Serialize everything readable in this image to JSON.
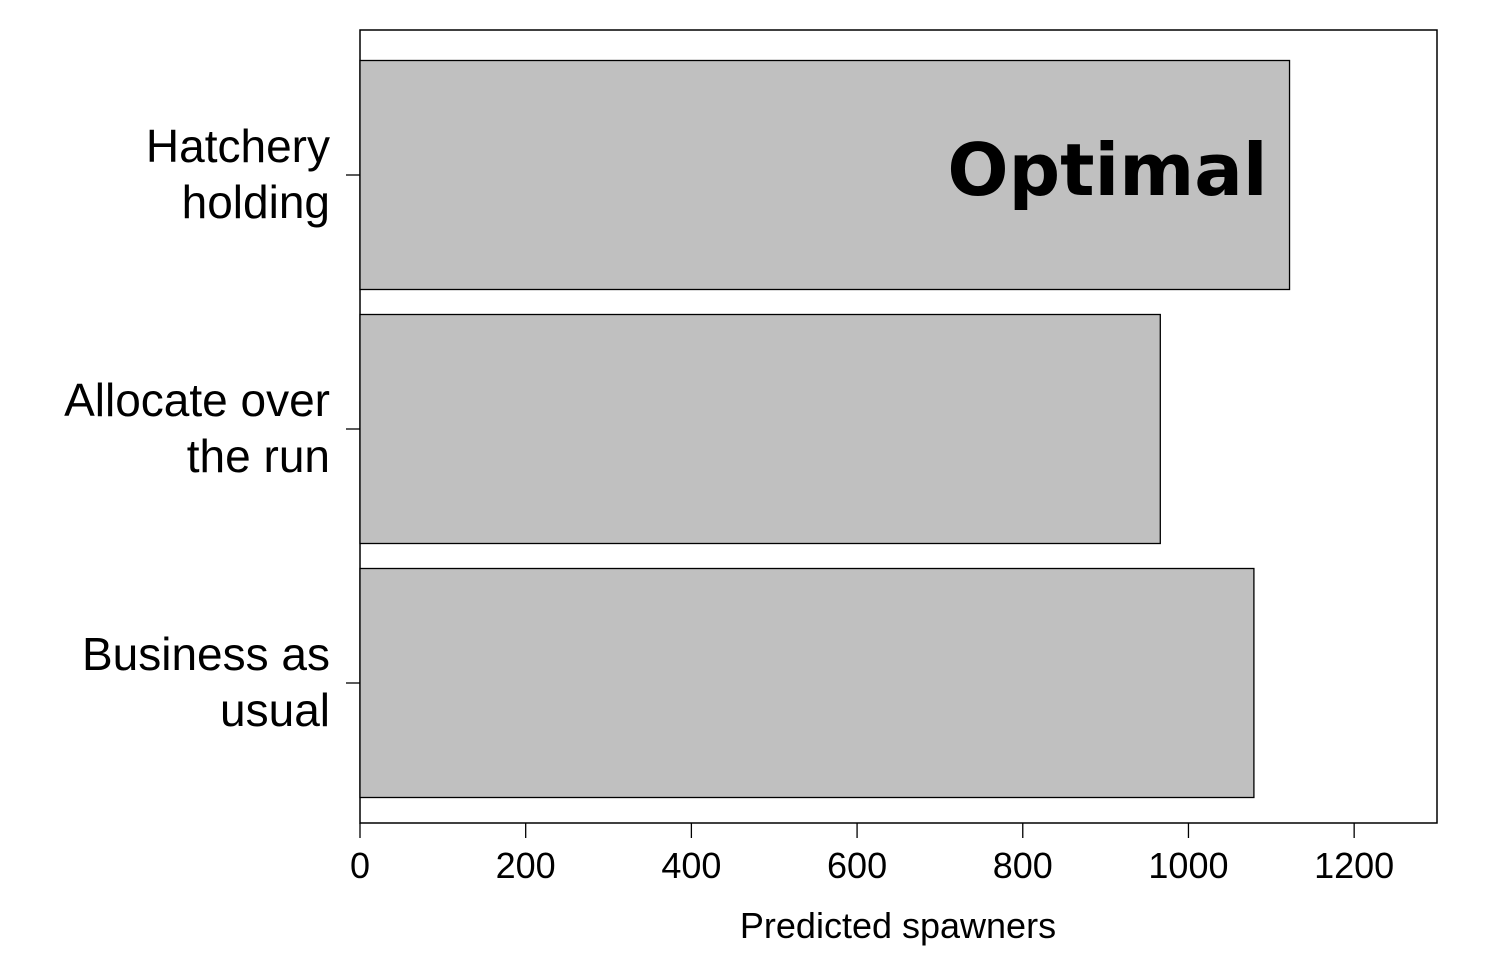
{
  "chart_data": {
    "type": "bar",
    "orientation": "horizontal",
    "categories": [
      "Hatchery holding",
      "Allocate over the run",
      "Business as usual"
    ],
    "category_labels": [
      [
        "Hatchery",
        "holding"
      ],
      [
        "Allocate over",
        "the run"
      ],
      [
        "Business as",
        "usual"
      ]
    ],
    "values": [
      1122,
      966,
      1079
    ],
    "xlabel": "Predicted spawners",
    "ylabel": "",
    "title": "",
    "xlim": [
      0,
      1300
    ],
    "xticks": [
      0,
      200,
      400,
      600,
      800,
      1000,
      1200
    ],
    "annotations": [
      {
        "text": "Optimal",
        "category": "Hatchery holding"
      }
    ],
    "grid": false,
    "legend": "none",
    "colors": {
      "bar_fill": "#c0c0c0",
      "bar_stroke": "#000000",
      "axis": "#000000"
    }
  }
}
